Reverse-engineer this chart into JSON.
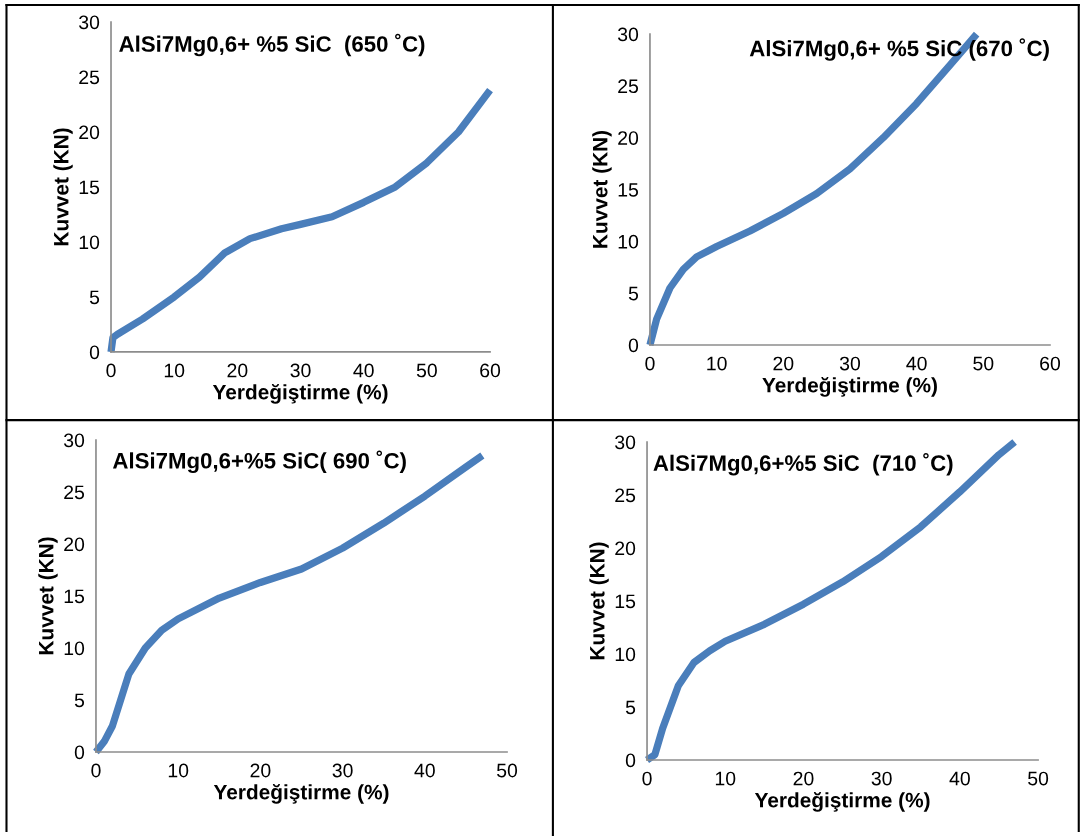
{
  "chart_data": [
    {
      "type": "line",
      "title": "AlSi7Mg0,6+ %5 SiC  (650 ˚C)",
      "xlabel": "Yerdeğiştirme (%)",
      "ylabel": "Kuvvet (KN)",
      "xlim": [
        0,
        60
      ],
      "xticks": [
        0,
        10,
        20,
        30,
        40,
        50,
        60
      ],
      "ylim": [
        0,
        30
      ],
      "yticks": [
        0,
        5,
        10,
        15,
        20,
        25,
        30
      ],
      "grid": false,
      "marker": "none",
      "line_style": "solid",
      "series": [
        {
          "color": "#4a7ebb",
          "x": [
            0,
            0.3,
            1,
            5,
            10,
            14,
            18,
            22,
            27,
            30,
            35,
            40,
            45,
            50,
            55,
            60
          ],
          "values": [
            0,
            1.3,
            1.6,
            3,
            5,
            6.8,
            9,
            10.3,
            11.2,
            11.6,
            12.3,
            13.6,
            15,
            17.2,
            20,
            23.8
          ]
        }
      ]
    },
    {
      "type": "line",
      "title": "AlSi7Mg0,6+ %5 SiC (670 ˚C)",
      "xlabel": "Yerdeğiştirme (%)",
      "ylabel": "Kuvvet (KN)",
      "xlim": [
        0,
        60
      ],
      "xticks": [
        0,
        10,
        20,
        30,
        40,
        50,
        60
      ],
      "ylim": [
        0,
        30
      ],
      "yticks": [
        0,
        5,
        10,
        15,
        20,
        25,
        30
      ],
      "grid": false,
      "marker": "none",
      "line_style": "solid",
      "series": [
        {
          "color": "#4a7ebb",
          "x": [
            0,
            1,
            3,
            5,
            7,
            10,
            15,
            20,
            25,
            30,
            35,
            40,
            45,
            49
          ],
          "values": [
            0,
            2.5,
            5.5,
            7.3,
            8.5,
            9.5,
            11,
            12.7,
            14.6,
            17,
            20,
            23.3,
            27,
            30
          ]
        }
      ]
    },
    {
      "type": "line",
      "title": "AlSi7Mg0,6+%5 SiC( 690 ˚C)",
      "xlabel": "Yerdeğiştirme (%)",
      "ylabel": "Kuvvet (KN)",
      "xlim": [
        0,
        50
      ],
      "xticks": [
        0,
        10,
        20,
        30,
        40,
        50
      ],
      "ylim": [
        0,
        30
      ],
      "yticks": [
        0,
        5,
        10,
        15,
        20,
        25,
        30
      ],
      "grid": false,
      "marker": "none",
      "line_style": "solid",
      "series": [
        {
          "color": "#4a7ebb",
          "x": [
            0,
            1,
            2,
            3,
            4,
            6,
            8,
            10,
            15,
            20,
            25,
            30,
            35,
            40,
            45,
            47
          ],
          "values": [
            0,
            1,
            2.5,
            5,
            7.5,
            10,
            11.7,
            12.8,
            14.8,
            16.3,
            17.6,
            19.6,
            22,
            24.6,
            27.4,
            28.5
          ]
        }
      ]
    },
    {
      "type": "line",
      "title": "AlSi7Mg0,6+%5 SiC  (710 ˚C)",
      "xlabel": "Yerdeğiştirme (%)",
      "ylabel": "Kuvvet (KN)",
      "xlim": [
        0,
        50
      ],
      "xticks": [
        0,
        10,
        20,
        30,
        40,
        50
      ],
      "ylim": [
        0,
        30
      ],
      "yticks": [
        0,
        5,
        10,
        15,
        20,
        25,
        30
      ],
      "grid": false,
      "marker": "none",
      "line_style": "solid",
      "series": [
        {
          "color": "#4a7ebb",
          "x": [
            0,
            1,
            2,
            4,
            6,
            8,
            10,
            15,
            20,
            25,
            30,
            35,
            40,
            45,
            47
          ],
          "values": [
            0,
            0.5,
            3,
            7,
            9.2,
            10.3,
            11.2,
            12.8,
            14.7,
            16.8,
            19.2,
            22,
            25.3,
            28.8,
            30
          ]
        }
      ]
    }
  ]
}
